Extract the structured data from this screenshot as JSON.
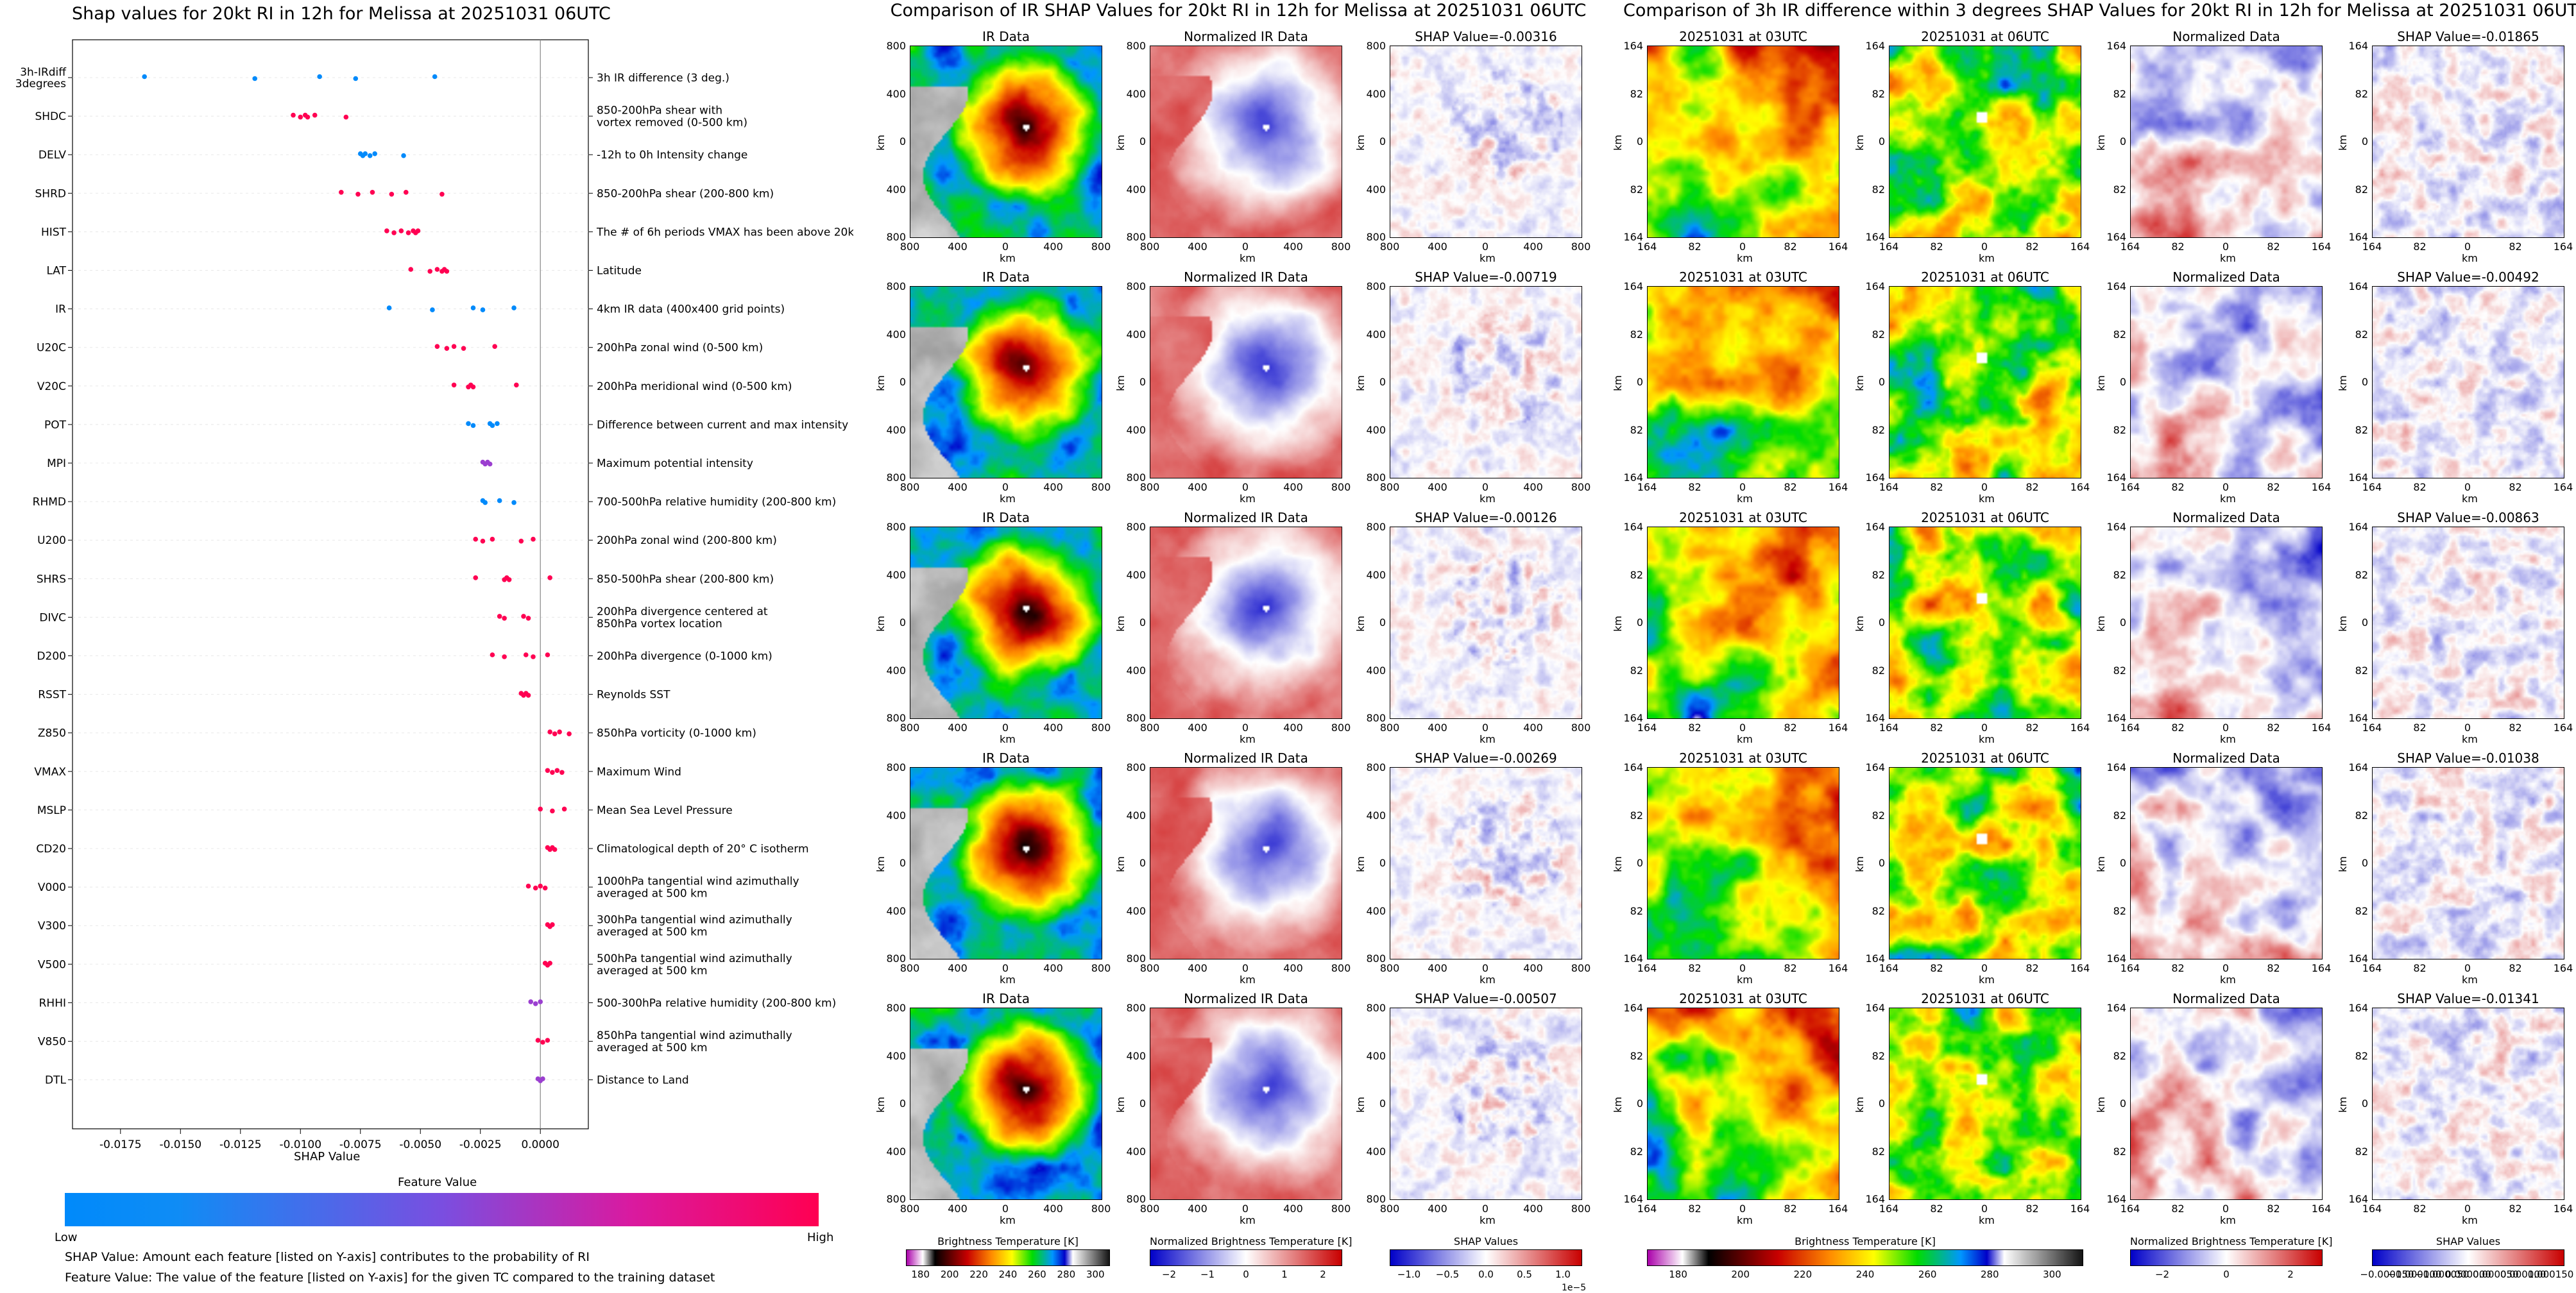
{
  "colors": {
    "low": "#008afb",
    "high": "#ff0052",
    "mid": "#9b3fd0",
    "grid": "#e8e8e8"
  },
  "chart_data": [
    {
      "type": "scatter",
      "title": "Shap values for 20kt RI in 12h for Melissa at 20251031 06UTC",
      "xlabel": "SHAP Value",
      "ylabel": "",
      "xlim": [
        -0.0195,
        0.002
      ],
      "xticks": [
        "-0.0175",
        "-0.0150",
        "-0.0125",
        "-0.0100",
        "-0.0075",
        "-0.0050",
        "-0.0025",
        "0.0000"
      ],
      "xtick_values": [
        -0.0175,
        -0.015,
        -0.0125,
        -0.01,
        -0.0075,
        -0.005,
        -0.0025,
        0.0
      ],
      "features": [
        {
          "code": "3h-IRdiff\n3degrees",
          "desc": "3h IR difference (3 deg.)",
          "color": "low",
          "points": [
            -0.0165,
            -0.0119,
            -0.0092,
            -0.0077,
            -0.0044
          ]
        },
        {
          "code": "SHDC",
          "desc": "850-200hPa shear with\nvortex removed (0-500 km)",
          "color": "high",
          "points": [
            -0.0103,
            -0.01,
            -0.0098,
            -0.0097,
            -0.0094,
            -0.0081
          ]
        },
        {
          "code": "DELV",
          "desc": "-12h to 0h Intensity change",
          "color": "low",
          "points": [
            -0.0075,
            -0.0074,
            -0.0073,
            -0.0071,
            -0.0069,
            -0.0057
          ]
        },
        {
          "code": "SHRD",
          "desc": "850-200hPa shear (200-800 km)",
          "color": "high",
          "points": [
            -0.0083,
            -0.0076,
            -0.007,
            -0.0062,
            -0.0056,
            -0.0041
          ]
        },
        {
          "code": "HIST",
          "desc": "The # of 6h periods VMAX has been above 20kt",
          "color": "high",
          "points": [
            -0.0064,
            -0.0061,
            -0.0058,
            -0.0055,
            -0.0053,
            -0.0052,
            -0.0051
          ]
        },
        {
          "code": "LAT",
          "desc": "Latitude",
          "color": "high",
          "points": [
            -0.0054,
            -0.0046,
            -0.0043,
            -0.0041,
            -0.004,
            -0.0039
          ]
        },
        {
          "code": "IR",
          "desc": "4km IR data (400x400 grid points)",
          "color": "low",
          "points": [
            -0.0063,
            -0.0045,
            -0.0028,
            -0.0024,
            -0.0011
          ]
        },
        {
          "code": "U20C",
          "desc": "200hPa zonal wind (0-500 km)",
          "color": "high",
          "points": [
            -0.0043,
            -0.0039,
            -0.0036,
            -0.0032,
            -0.0019
          ]
        },
        {
          "code": "V20C",
          "desc": "200hPa meridional wind (0-500 km)",
          "color": "high",
          "points": [
            -0.0036,
            -0.003,
            -0.0029,
            -0.0028,
            -0.001
          ]
        },
        {
          "code": "POT",
          "desc": "Difference between current and max intensity",
          "color": "low",
          "points": [
            -0.003,
            -0.0028,
            -0.0021,
            -0.002,
            -0.0018
          ]
        },
        {
          "code": "MPI",
          "desc": "Maximum potential intensity",
          "color": "mid",
          "points": [
            -0.0024,
            -0.0023,
            -0.0022,
            -0.0021
          ]
        },
        {
          "code": "RHMD",
          "desc": "700-500hPa relative humidity (200-800 km)",
          "color": "low",
          "points": [
            -0.0024,
            -0.0023,
            -0.0017,
            -0.0011
          ]
        },
        {
          "code": "U200",
          "desc": "200hPa zonal wind (200-800 km)",
          "color": "high",
          "points": [
            -0.0027,
            -0.0024,
            -0.002,
            -0.0008,
            -0.0003
          ]
        },
        {
          "code": "SHRS",
          "desc": "850-500hPa shear (200-800 km)",
          "color": "high",
          "points": [
            -0.0027,
            -0.0015,
            -0.0014,
            -0.0013,
            0.0004
          ]
        },
        {
          "code": "DIVC",
          "desc": "200hPa divergence centered at\n850hPa vortex location",
          "color": "high",
          "points": [
            -0.0017,
            -0.0015,
            -0.0007,
            -0.0005
          ]
        },
        {
          "code": "D200",
          "desc": "200hPa divergence (0-1000 km)",
          "color": "high",
          "points": [
            -0.002,
            -0.0015,
            -0.0006,
            -0.0003,
            0.0003
          ]
        },
        {
          "code": "RSST",
          "desc": "Reynolds SST",
          "color": "high",
          "points": [
            -0.0008,
            -0.0007,
            -0.0006,
            -0.0005
          ]
        },
        {
          "code": "Z850",
          "desc": "850hPa vorticity (0-1000 km)",
          "color": "high",
          "points": [
            0.0004,
            0.0006,
            0.0008,
            0.0012
          ]
        },
        {
          "code": "VMAX",
          "desc": "Maximum Wind",
          "color": "high",
          "points": [
            0.0003,
            0.0005,
            0.0007,
            0.0009
          ]
        },
        {
          "code": "MSLP",
          "desc": "Mean Sea Level Pressure",
          "color": "high",
          "points": [
            0.0,
            0.0005,
            0.001
          ]
        },
        {
          "code": "CD20",
          "desc": "Climatological depth of 20° C isotherm",
          "color": "high",
          "points": [
            0.0003,
            0.0004,
            0.0005,
            0.0006
          ]
        },
        {
          "code": "V000",
          "desc": "1000hPa tangential wind azimuthally\naveraged at 500 km",
          "color": "high",
          "points": [
            -0.0005,
            -0.0002,
            0.0,
            0.0002
          ]
        },
        {
          "code": "V300",
          "desc": "300hPa tangential wind azimuthally\naveraged at 500 km",
          "color": "high",
          "points": [
            0.0003,
            0.0004,
            0.0005
          ]
        },
        {
          "code": "V500",
          "desc": "500hPa tangential wind azimuthally\naveraged at 500 km",
          "color": "high",
          "points": [
            0.0002,
            0.0003,
            0.0004
          ]
        },
        {
          "code": "RHHI",
          "desc": "500-300hPa relative humidity (200-800 km)",
          "color": "mid",
          "points": [
            -0.0004,
            -0.0002,
            0.0
          ]
        },
        {
          "code": "V850",
          "desc": "850hPa tangential wind azimuthally\naveraged at 500 km",
          "color": "high",
          "points": [
            -0.0001,
            0.0001,
            0.0003
          ]
        },
        {
          "code": "DTL",
          "desc": "Distance to Land",
          "color": "mid",
          "points": [
            -0.0001,
            0.0,
            0.0001
          ]
        }
      ],
      "colorbar": {
        "label": "Feature Value",
        "low": "Low",
        "high": "High"
      }
    }
  ],
  "left_notes": [
    "SHAP Value: Amount each feature [listed on Y-axis] contributes to the probability of RI",
    "Feature Value: The value of the feature [listed on Y-axis] for the given TC compared to the training dataset"
  ],
  "ir_section": {
    "title": "Comparison of IR SHAP Values for 20kt RI in 12h for Melissa at 20251031 06UTC",
    "col_titles": [
      "IR Data",
      "Normalized IR Data"
    ],
    "shap_titles": [
      "SHAP Value=-0.00316",
      "SHAP Value=-0.00719",
      "SHAP Value=-0.00126",
      "SHAP Value=-0.00269",
      "SHAP Value=-0.00507"
    ],
    "yticks": [
      "800",
      "400",
      "0",
      "400",
      "800"
    ],
    "xticks": [
      "800",
      "400",
      "0",
      "400",
      "800"
    ],
    "axis_label": "km",
    "cbars": [
      {
        "label": "Brightness Temperature [K]",
        "ticks": [
          "180",
          "200",
          "220",
          "240",
          "260",
          "280",
          "300"
        ],
        "scale": ""
      },
      {
        "label": "Normalized Brightness Temperature [K]",
        "ticks": [
          "−2",
          "−1",
          "0",
          "1",
          "2"
        ],
        "scale": ""
      },
      {
        "label": "SHAP Values",
        "ticks": [
          "−1.0",
          "−0.5",
          "0.0",
          "0.5",
          "1.0"
        ],
        "scale": "1e−5"
      }
    ]
  },
  "diff_section": {
    "title": "Comparison of 3h IR difference within 3 degrees SHAP Values for 20kt RI in 12h for Melissa at 20251031 06UTC",
    "col_titles": [
      "20251031 at 03UTC",
      "20251031 at 06UTC",
      "Normalized Data"
    ],
    "shap_titles": [
      "SHAP Value=-0.01865",
      "SHAP Value=-0.00492",
      "SHAP Value=-0.00863",
      "SHAP Value=-0.01038",
      "SHAP Value=-0.01341"
    ],
    "yticks": [
      "164",
      "82",
      "0",
      "82",
      "164"
    ],
    "xticks": [
      "164",
      "82",
      "0",
      "82",
      "164"
    ],
    "axis_label": "km",
    "cbars": [
      {
        "label": "Brightness Temperature [K]",
        "ticks": [
          "180",
          "200",
          "220",
          "240",
          "260",
          "280",
          "300"
        ]
      },
      {
        "label": "Normalized Brightness Temperature [K]",
        "ticks": [
          "−2",
          "0",
          "2"
        ]
      },
      {
        "label": "SHAP Values",
        "ticks": [
          "−0.000150",
          "−0.000100",
          "−0.000050",
          "0.000000",
          "0.000050",
          "0.000100",
          "0.000150"
        ]
      }
    ]
  }
}
